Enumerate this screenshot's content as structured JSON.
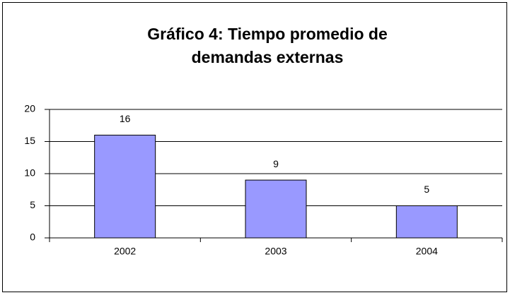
{
  "chart_data": {
    "type": "bar",
    "title": [
      "Gráfico 4: Tiempo promedio de",
      "demandas externas"
    ],
    "categories": [
      "2002",
      "2003",
      "2004"
    ],
    "values": [
      16,
      9,
      5
    ],
    "color": "#9999ff",
    "ylim": [
      0,
      20
    ],
    "yticks": [
      0,
      5,
      10,
      15,
      20
    ],
    "grid": true
  }
}
